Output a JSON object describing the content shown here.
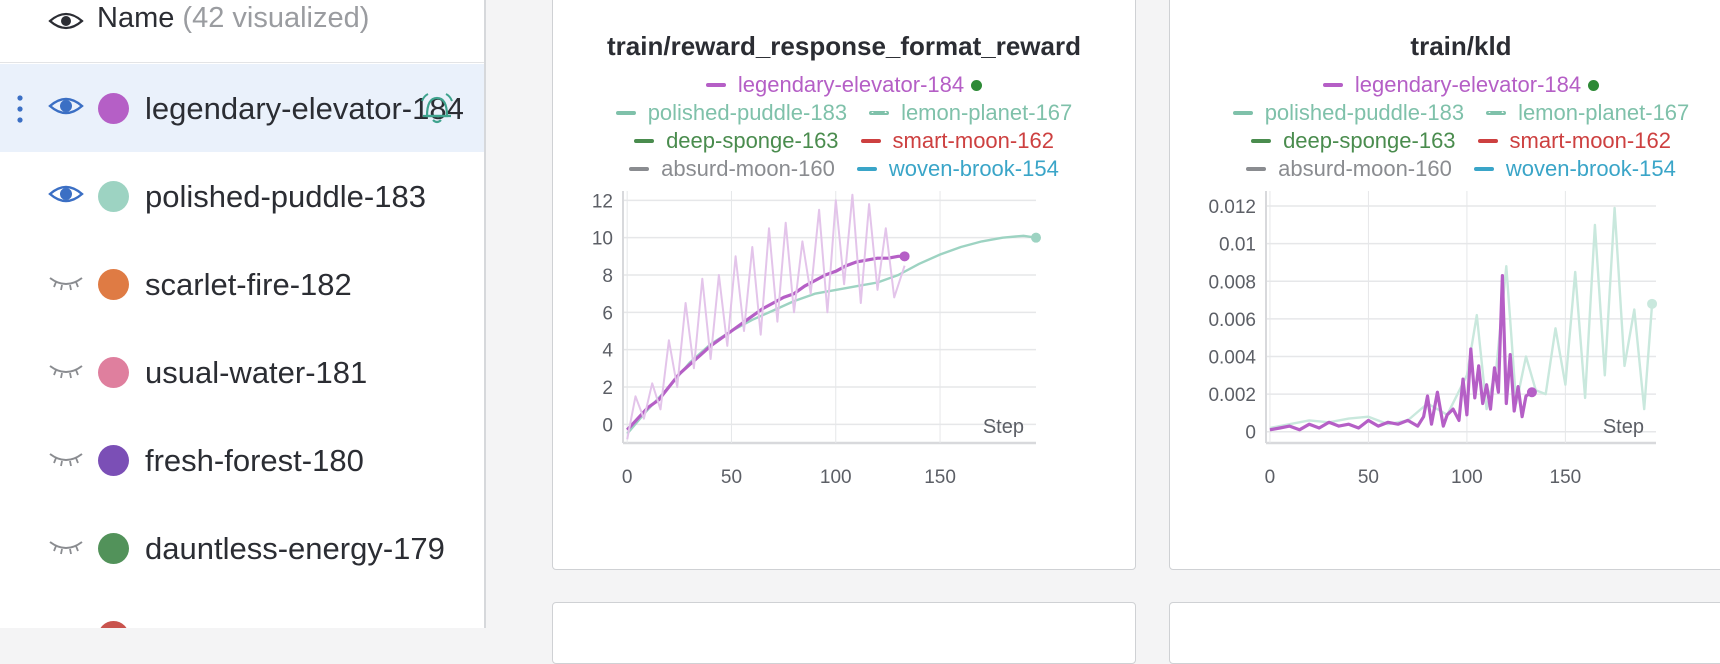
{
  "sidebar": {
    "header": {
      "name_label": "Name",
      "visualized_count": "(42 visualized)"
    },
    "runs": [
      {
        "name": "legendary-elevator-184",
        "color": "#b55fc6",
        "visible": true,
        "selected": true
      },
      {
        "name": "polished-puddle-183",
        "color": "#9dd3c2",
        "visible": true,
        "selected": false
      },
      {
        "name": "scarlet-fire-182",
        "color": "#df7b44",
        "visible": false,
        "selected": false
      },
      {
        "name": "usual-water-181",
        "color": "#df7f9e",
        "visible": false,
        "selected": false
      },
      {
        "name": "fresh-forest-180",
        "color": "#7b4fb6",
        "visible": false,
        "selected": false
      },
      {
        "name": "dauntless-energy-179",
        "color": "#52925a",
        "visible": false,
        "selected": false
      },
      {
        "name": "",
        "color": "#c9534d",
        "visible": false,
        "selected": false
      }
    ]
  },
  "legend": [
    [
      {
        "name": "legendary-elevator-184",
        "color": "#b55fc6",
        "dashed": false,
        "live": true
      }
    ],
    [
      {
        "name": "polished-puddle-183",
        "color": "#7fc1aa",
        "dashed": false
      },
      {
        "name": "lemon-planet-167",
        "color": "#7fc1aa",
        "dashed": true
      }
    ],
    [
      {
        "name": "deep-sponge-163",
        "color": "#4a8c4e",
        "dashed": false
      },
      {
        "name": "smart-moon-162",
        "color": "#cd4040",
        "dashed": false
      }
    ],
    [
      {
        "name": "absurd-moon-160",
        "color": "#8a8c90",
        "dashed": false
      },
      {
        "name": "woven-brook-154",
        "color": "#3aa5c8",
        "dashed": false
      }
    ]
  ],
  "colors": {
    "live_dot": "#2d8a36",
    "grid": "#e6e7e9",
    "tick": "#5c5f66"
  },
  "chart_data": [
    {
      "type": "line",
      "title": "train/reward_response_format_reward",
      "xlabel": "Step",
      "xlim": [
        -2,
        196
      ],
      "ylim": [
        -1,
        12.5
      ],
      "xticks": [
        0,
        50,
        100,
        150
      ],
      "yticks": [
        0,
        2,
        4,
        6,
        8,
        10,
        12
      ],
      "series": [
        {
          "name": "polished-puddle-183",
          "color": "#9dd3c2",
          "x": [
            0,
            10,
            20,
            30,
            40,
            50,
            60,
            70,
            80,
            90,
            100,
            110,
            120,
            130,
            140,
            150,
            160,
            170,
            180,
            190,
            196
          ],
          "y": [
            -0.5,
            0.8,
            2.0,
            3.3,
            4.3,
            5.0,
            5.6,
            6.1,
            6.6,
            7.0,
            7.2,
            7.4,
            7.6,
            8.0,
            8.6,
            9.1,
            9.5,
            9.8,
            10.0,
            10.1,
            10.0
          ]
        },
        {
          "name": "legendary-elevator-184",
          "color": "#b55fc6",
          "x": [
            0,
            5,
            10,
            15,
            20,
            25,
            30,
            35,
            40,
            45,
            50,
            55,
            60,
            65,
            70,
            75,
            80,
            85,
            90,
            95,
            100,
            105,
            110,
            115,
            120,
            125,
            130,
            133
          ],
          "y": [
            -0.3,
            0.3,
            0.9,
            1.3,
            2.0,
            2.7,
            3.2,
            3.7,
            4.2,
            4.6,
            5.0,
            5.4,
            5.8,
            6.2,
            6.5,
            6.8,
            7.0,
            7.4,
            7.7,
            8.0,
            8.2,
            8.5,
            8.7,
            8.8,
            8.9,
            8.9,
            9.0,
            9.0
          ]
        },
        {
          "name": "legendary-elevator-184 (raw)",
          "color": "#e3c4ea",
          "x": [
            0,
            4,
            8,
            12,
            16,
            20,
            24,
            28,
            32,
            36,
            40,
            44,
            48,
            52,
            56,
            60,
            64,
            68,
            72,
            76,
            80,
            84,
            88,
            92,
            96,
            100,
            104,
            108,
            112,
            116,
            120,
            124,
            128,
            133
          ],
          "y": [
            -0.8,
            1.5,
            0.3,
            2.2,
            0.8,
            4.5,
            2.0,
            6.5,
            3.0,
            7.8,
            3.5,
            8.0,
            4.2,
            9.0,
            5.0,
            9.5,
            4.8,
            10.5,
            5.5,
            10.8,
            6.0,
            9.8,
            7.0,
            11.5,
            6.0,
            12.0,
            7.5,
            12.3,
            6.5,
            11.8,
            7.2,
            10.5,
            6.8,
            8.5
          ]
        }
      ]
    },
    {
      "type": "line",
      "title": "train/kld",
      "xlabel": "Step",
      "xlim": [
        -2,
        196
      ],
      "ylim": [
        -0.0006,
        0.0128
      ],
      "xticks": [
        0,
        50,
        100,
        150
      ],
      "yticks": [
        0,
        0.002,
        0.004,
        0.006,
        0.008,
        0.01,
        0.012
      ],
      "ytick_labels": [
        "0",
        "0.002",
        "0.004",
        "0.006",
        "0.008",
        "0.01",
        "0.012"
      ],
      "series": [
        {
          "name": "polished-puddle-183",
          "color": "#c9e8dd",
          "x": [
            0,
            10,
            20,
            30,
            40,
            50,
            60,
            70,
            80,
            90,
            100,
            105,
            110,
            115,
            120,
            125,
            130,
            135,
            140,
            145,
            150,
            155,
            160,
            165,
            170,
            175,
            180,
            185,
            190,
            194
          ],
          "y": [
            0.0002,
            0.0004,
            0.0006,
            0.0005,
            0.0007,
            0.0008,
            0.0004,
            0.0006,
            0.0015,
            0.0009,
            0.003,
            0.0062,
            0.0012,
            0.0035,
            0.0088,
            0.0015,
            0.004,
            0.0022,
            0.002,
            0.0055,
            0.0025,
            0.0085,
            0.0018,
            0.011,
            0.003,
            0.0119,
            0.0035,
            0.0065,
            0.0012,
            0.0068
          ]
        },
        {
          "name": "legendary-elevator-184",
          "color": "#b55fc6",
          "x": [
            0,
            5,
            10,
            15,
            20,
            25,
            30,
            35,
            40,
            45,
            50,
            55,
            60,
            65,
            70,
            75,
            78,
            80,
            82,
            85,
            88,
            90,
            93,
            96,
            98,
            100,
            102,
            104,
            106,
            108,
            110,
            112,
            114,
            116,
            118,
            120,
            122,
            124,
            126,
            128,
            130,
            133
          ],
          "y": [
            0.0001,
            0.0002,
            0.0003,
            0.0001,
            0.0004,
            0.0002,
            0.0005,
            0.0003,
            0.0004,
            0.0002,
            0.0006,
            0.0003,
            0.0005,
            0.0004,
            0.0006,
            0.0003,
            0.0008,
            0.0019,
            0.0004,
            0.0021,
            0.0003,
            0.0009,
            0.0012,
            0.0006,
            0.0028,
            0.0009,
            0.0044,
            0.0018,
            0.0035,
            0.0015,
            0.0025,
            0.0012,
            0.0034,
            0.0021,
            0.0083,
            0.0015,
            0.0041,
            0.0011,
            0.0024,
            0.0008,
            0.0019,
            0.0021
          ]
        }
      ]
    }
  ]
}
